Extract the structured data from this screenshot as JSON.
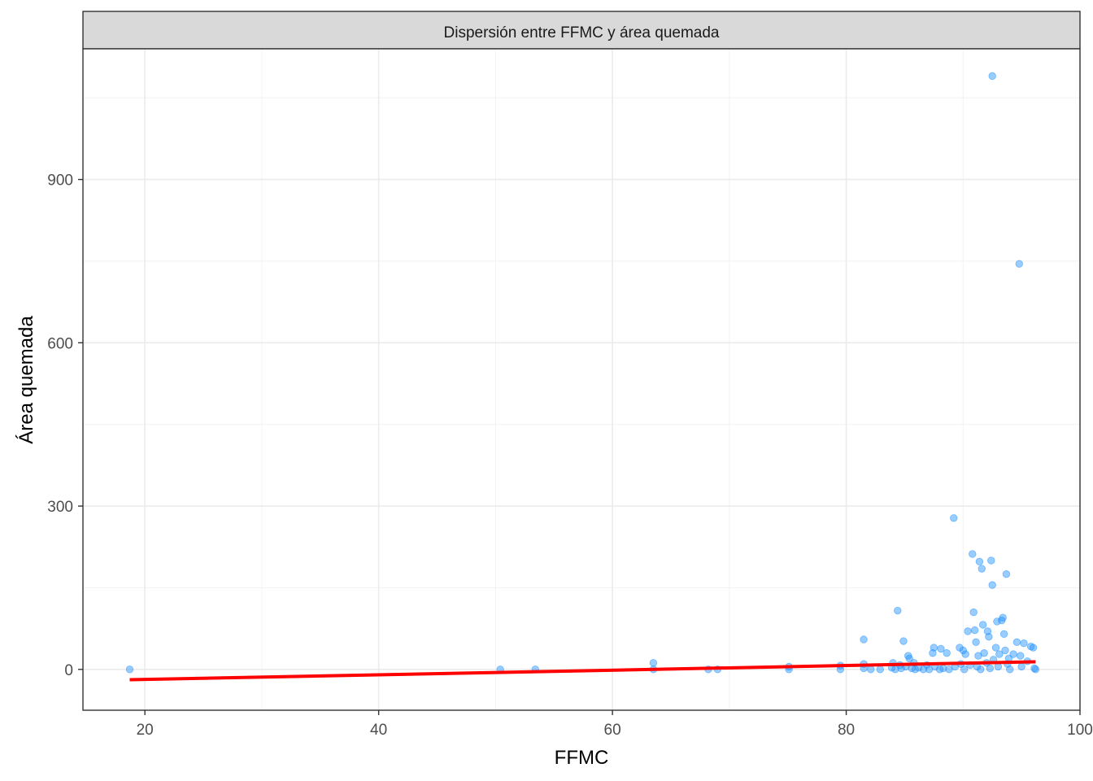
{
  "chart_data": {
    "type": "scatter",
    "facet_title": "Dispersión entre FFMC y área quemada",
    "xlabel": "FFMC",
    "ylabel": "Área quemada",
    "xlim": [
      14.7,
      100
    ],
    "ylim": [
      -75,
      1140
    ],
    "x_ticks": [
      20,
      40,
      60,
      80,
      100
    ],
    "y_ticks": [
      0,
      300,
      600,
      900
    ],
    "x_minor": [
      30,
      50,
      70,
      90
    ],
    "y_minor": [
      150,
      450,
      750,
      1050
    ],
    "grid": true,
    "point_color": "#1E90FF",
    "point_opacity": 0.45,
    "trend_color": "#FF0000",
    "trend_line": {
      "x": [
        18.7,
        96.2
      ],
      "y": [
        -19,
        14
      ]
    },
    "points": [
      [
        18.7,
        0
      ],
      [
        50.4,
        0
      ],
      [
        53.4,
        0
      ],
      [
        63.5,
        12
      ],
      [
        63.5,
        0
      ],
      [
        68.2,
        0
      ],
      [
        69.0,
        0
      ],
      [
        75.1,
        5
      ],
      [
        75.1,
        0
      ],
      [
        79.5,
        7
      ],
      [
        79.5,
        0
      ],
      [
        81.5,
        55
      ],
      [
        81.5,
        10
      ],
      [
        81.5,
        2
      ],
      [
        82.1,
        0
      ],
      [
        82.9,
        0
      ],
      [
        83.9,
        3
      ],
      [
        84.0,
        12
      ],
      [
        84.2,
        0
      ],
      [
        84.4,
        108
      ],
      [
        84.6,
        8
      ],
      [
        84.7,
        2
      ],
      [
        84.9,
        52
      ],
      [
        85.1,
        5
      ],
      [
        85.3,
        25
      ],
      [
        85.4,
        20
      ],
      [
        85.6,
        2
      ],
      [
        85.8,
        12
      ],
      [
        85.9,
        0
      ],
      [
        86.2,
        3
      ],
      [
        86.6,
        0
      ],
      [
        86.9,
        8
      ],
      [
        87.1,
        0
      ],
      [
        87.4,
        30
      ],
      [
        87.5,
        40
      ],
      [
        87.6,
        5
      ],
      [
        88.0,
        0
      ],
      [
        88.1,
        38
      ],
      [
        88.3,
        2
      ],
      [
        88.6,
        30
      ],
      [
        88.8,
        0
      ],
      [
        89.2,
        278
      ],
      [
        89.3,
        5
      ],
      [
        89.7,
        40
      ],
      [
        89.8,
        10
      ],
      [
        90.0,
        35
      ],
      [
        90.1,
        0
      ],
      [
        90.2,
        28
      ],
      [
        90.4,
        70
      ],
      [
        90.6,
        8
      ],
      [
        90.8,
        212
      ],
      [
        90.9,
        105
      ],
      [
        91.0,
        72
      ],
      [
        91.1,
        50
      ],
      [
        91.2,
        5
      ],
      [
        91.3,
        25
      ],
      [
        91.4,
        198
      ],
      [
        91.5,
        0
      ],
      [
        91.6,
        185
      ],
      [
        91.7,
        82
      ],
      [
        91.8,
        30
      ],
      [
        92.0,
        12
      ],
      [
        92.1,
        70
      ],
      [
        92.2,
        60
      ],
      [
        92.3,
        2
      ],
      [
        92.4,
        200
      ],
      [
        92.5,
        1090
      ],
      [
        92.5,
        155
      ],
      [
        92.6,
        18
      ],
      [
        92.8,
        40
      ],
      [
        92.9,
        88
      ],
      [
        93.0,
        5
      ],
      [
        93.1,
        28
      ],
      [
        93.3,
        90
      ],
      [
        93.4,
        95
      ],
      [
        93.5,
        65
      ],
      [
        93.6,
        35
      ],
      [
        93.7,
        175
      ],
      [
        93.8,
        10
      ],
      [
        93.9,
        20
      ],
      [
        94.0,
        0
      ],
      [
        94.3,
        28
      ],
      [
        94.6,
        50
      ],
      [
        94.8,
        745
      ],
      [
        94.9,
        25
      ],
      [
        95.0,
        5
      ],
      [
        95.2,
        48
      ],
      [
        95.5,
        15
      ],
      [
        95.8,
        42
      ],
      [
        96.0,
        40
      ],
      [
        96.1,
        2
      ],
      [
        96.2,
        0
      ]
    ]
  }
}
